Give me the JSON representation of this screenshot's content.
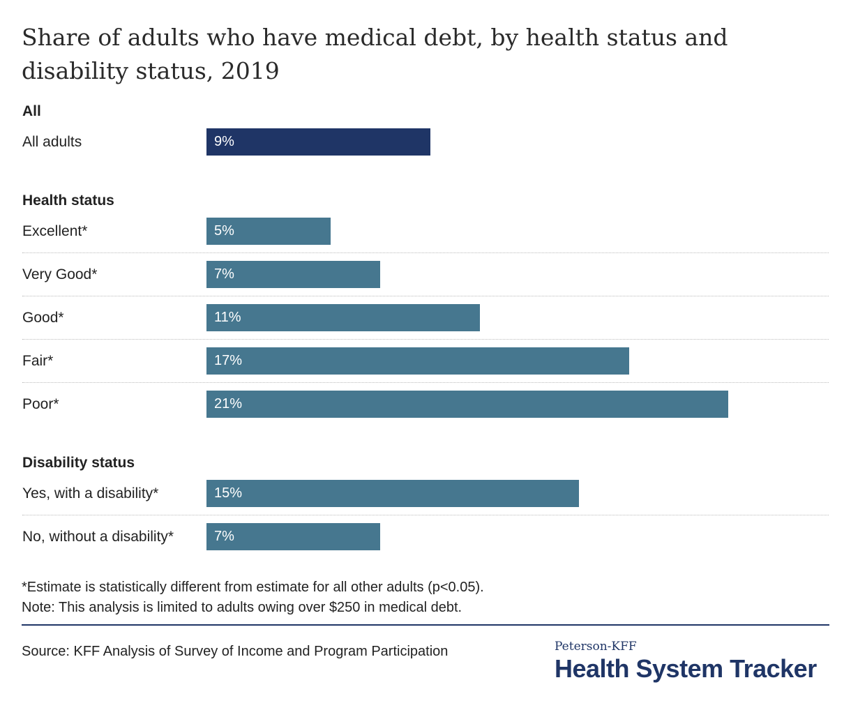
{
  "chart_data": {
    "type": "bar",
    "orientation": "horizontal",
    "title": "Share of adults who have medical debt, by health status and disability status, 2019",
    "xlim": [
      0,
      27
    ],
    "groups": [
      {
        "name": "All",
        "items": [
          {
            "category": "All adults",
            "value": 9,
            "label": "9%"
          }
        ]
      },
      {
        "name": "Health status",
        "items": [
          {
            "category": "Excellent*",
            "value": 5,
            "label": "5%"
          },
          {
            "category": "Very Good*",
            "value": 7,
            "label": "7%"
          },
          {
            "category": "Good*",
            "value": 11,
            "label": "11%"
          },
          {
            "category": "Fair*",
            "value": 17,
            "label": "17%"
          },
          {
            "category": "Poor*",
            "value": 21,
            "label": "21%"
          }
        ]
      },
      {
        "name": "Disability status",
        "items": [
          {
            "category": "Yes, with a disability*",
            "value": 15,
            "label": "15%"
          },
          {
            "category": "No, without a disability*",
            "value": 7,
            "label": "7%"
          }
        ]
      }
    ],
    "colors": {
      "all": "#1f3566",
      "subgroup": "#46778f"
    }
  },
  "notes": [
    "*Estimate is statistically different from estimate for all other adults (p<0.05).",
    "Note: This analysis is limited to adults owing over $250 in medical debt."
  ],
  "source": "Source: KFF Analysis of Survey of Income and Program Participation",
  "logo": {
    "top": "Peterson-KFF",
    "main": "Health System Tracker"
  }
}
